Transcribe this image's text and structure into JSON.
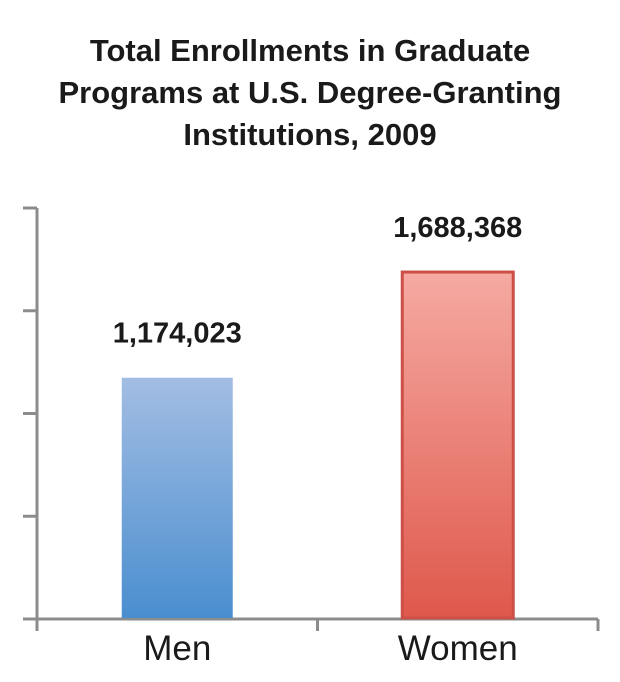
{
  "chart_data": {
    "type": "bar",
    "title_lines": [
      "Total Enrollments in Graduate",
      "Programs at U.S. Degree-Granting",
      "Institutions, 2009"
    ],
    "categories": [
      "Men",
      "Women"
    ],
    "values": [
      1174023,
      1688368
    ],
    "data_labels": [
      "1,174,023",
      "1,688,368"
    ],
    "xlabel": "",
    "ylabel": "",
    "ylim": [
      0,
      2000000
    ],
    "y_tick_step": 500000,
    "y_tick_labels_shown": false,
    "grid": false,
    "legend": "none",
    "colors": {
      "Men": {
        "top": "#a3bde3",
        "bottom": "#4a8ecf",
        "border": "none"
      },
      "Women": {
        "top": "#f5aaa2",
        "bottom": "#df584c",
        "border": "#cc5048"
      },
      "axis": "#8c8c8c",
      "text": "#1a1a1a"
    }
  }
}
